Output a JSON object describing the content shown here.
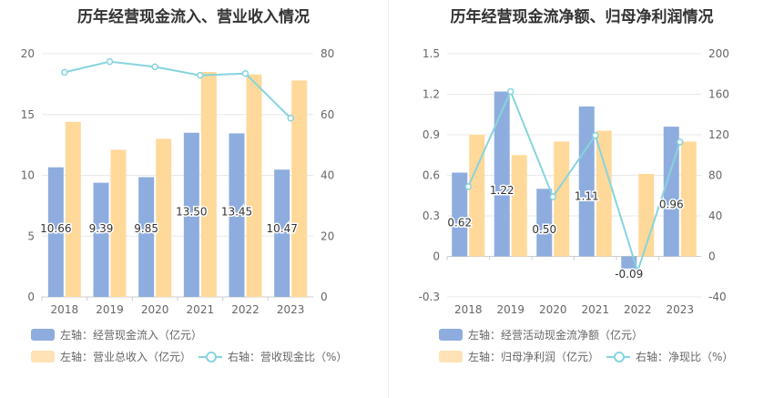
{
  "colors": {
    "bar_blue": "#8eadde",
    "bar_yellow": "#ffd99a",
    "line_cyan": "#86d4de",
    "grid": "#e8e8e8",
    "axis_text": "#666666"
  },
  "chart_data": [
    {
      "type": "bar",
      "title": "历年经营现金流入、营业收入情况",
      "categories": [
        "2018",
        "2019",
        "2020",
        "2021",
        "2022",
        "2023"
      ],
      "left_axis": {
        "ylim": [
          0,
          20
        ],
        "ticks": [
          "0",
          "5",
          "10",
          "15",
          "20"
        ]
      },
      "right_axis": {
        "ylim": [
          0,
          80
        ],
        "ticks": [
          "0",
          "20",
          "40",
          "60",
          "80"
        ]
      },
      "series": [
        {
          "name": "左轴：经营现金流入（亿元）",
          "axis": "left",
          "kind": "bar",
          "values": [
            10.66,
            9.39,
            9.85,
            13.5,
            13.45,
            10.47
          ],
          "labels": [
            "10.66",
            "9.39",
            "9.85",
            "13.50",
            "13.45",
            "10.47"
          ]
        },
        {
          "name": "左轴：营业总收入（亿元）",
          "axis": "left",
          "kind": "bar",
          "values": [
            14.4,
            12.1,
            13.0,
            18.5,
            18.3,
            17.8
          ]
        },
        {
          "name": "右轴：营收现金比（%）",
          "axis": "right",
          "kind": "line",
          "values": [
            73.9,
            77.4,
            75.7,
            72.9,
            73.5,
            58.8
          ]
        }
      ]
    },
    {
      "type": "bar",
      "title": "历年经营现金流净额、归母净利润情况",
      "categories": [
        "2018",
        "2019",
        "2020",
        "2021",
        "2022",
        "2023"
      ],
      "left_axis": {
        "ylim": [
          -0.3,
          1.5
        ],
        "ticks": [
          "-0.3",
          "0",
          "0.3",
          "0.6",
          "0.9",
          "1.2",
          "1.5"
        ]
      },
      "right_axis": {
        "ylim": [
          -40,
          200
        ],
        "ticks": [
          "-40",
          "0",
          "40",
          "80",
          "120",
          "160",
          "200"
        ]
      },
      "series": [
        {
          "name": "左轴：经营活动现金流净额（亿元）",
          "axis": "left",
          "kind": "bar",
          "values": [
            0.62,
            1.22,
            0.5,
            1.11,
            -0.09,
            0.96
          ],
          "labels": [
            "0.62",
            "1.22",
            "0.50",
            "1.11",
            "-0.09",
            "0.96"
          ]
        },
        {
          "name": "左轴：归母净利润（亿元）",
          "axis": "left",
          "kind": "bar",
          "values": [
            0.9,
            0.75,
            0.85,
            0.93,
            0.61,
            0.85
          ]
        },
        {
          "name": "右轴：净现比（%）",
          "axis": "right",
          "kind": "line",
          "values": [
            68.9,
            162.7,
            58.8,
            119.4,
            -14.8,
            112.9
          ]
        }
      ]
    }
  ]
}
